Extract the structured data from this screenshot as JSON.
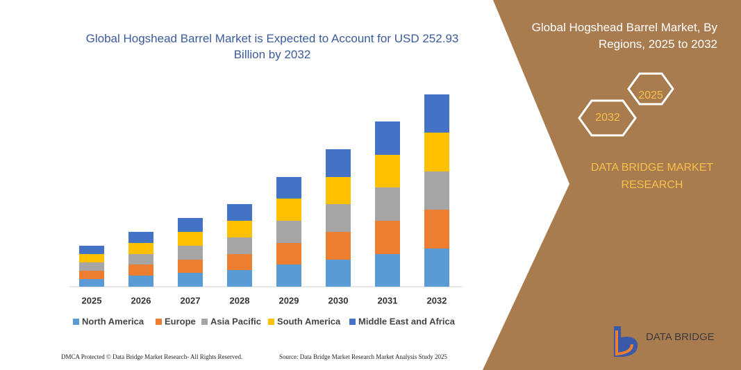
{
  "chart_data": {
    "type": "stacked-bar",
    "title": "Global Hogshead Barrel Market is Expected to Account for USD 252.93 Billion by 2032",
    "categories": [
      "2025",
      "2026",
      "2027",
      "2028",
      "2029",
      "2030",
      "2031",
      "2032"
    ],
    "series": [
      {
        "name": "North America",
        "color": "#5b9bd5",
        "values": [
          11,
          16,
          20,
          24,
          32,
          39,
          47,
          55
        ]
      },
      {
        "name": "Europe",
        "color": "#ed7d31",
        "values": [
          12,
          16,
          19,
          23,
          31,
          40,
          48,
          56
        ]
      },
      {
        "name": "Asia Pacific",
        "color": "#a5a5a5",
        "values": [
          12,
          15,
          20,
          24,
          32,
          40,
          48,
          55
        ]
      },
      {
        "name": "South America",
        "color": "#ffc000",
        "values": [
          12,
          16,
          20,
          24,
          32,
          39,
          47,
          56
        ]
      },
      {
        "name": "Middle East and Africa",
        "color": "#4472c4",
        "values": [
          12,
          16,
          20,
          24,
          31,
          40,
          48,
          55
        ]
      }
    ]
  },
  "panel": {
    "title": "Global Hogshead Barrel Market, By Regions, 2025 to 2032",
    "hexagons": [
      "2025",
      "2032"
    ],
    "brand": "DATA BRIDGE MARKET RESEARCH"
  },
  "logo": "DATA BRIDGE",
  "footer": {
    "left": "DMCA Protected © Data Bridge Market Research- All Rights Reserved.",
    "right": "Source: Data Bridge Market Research Market Analysis Study 2025"
  }
}
